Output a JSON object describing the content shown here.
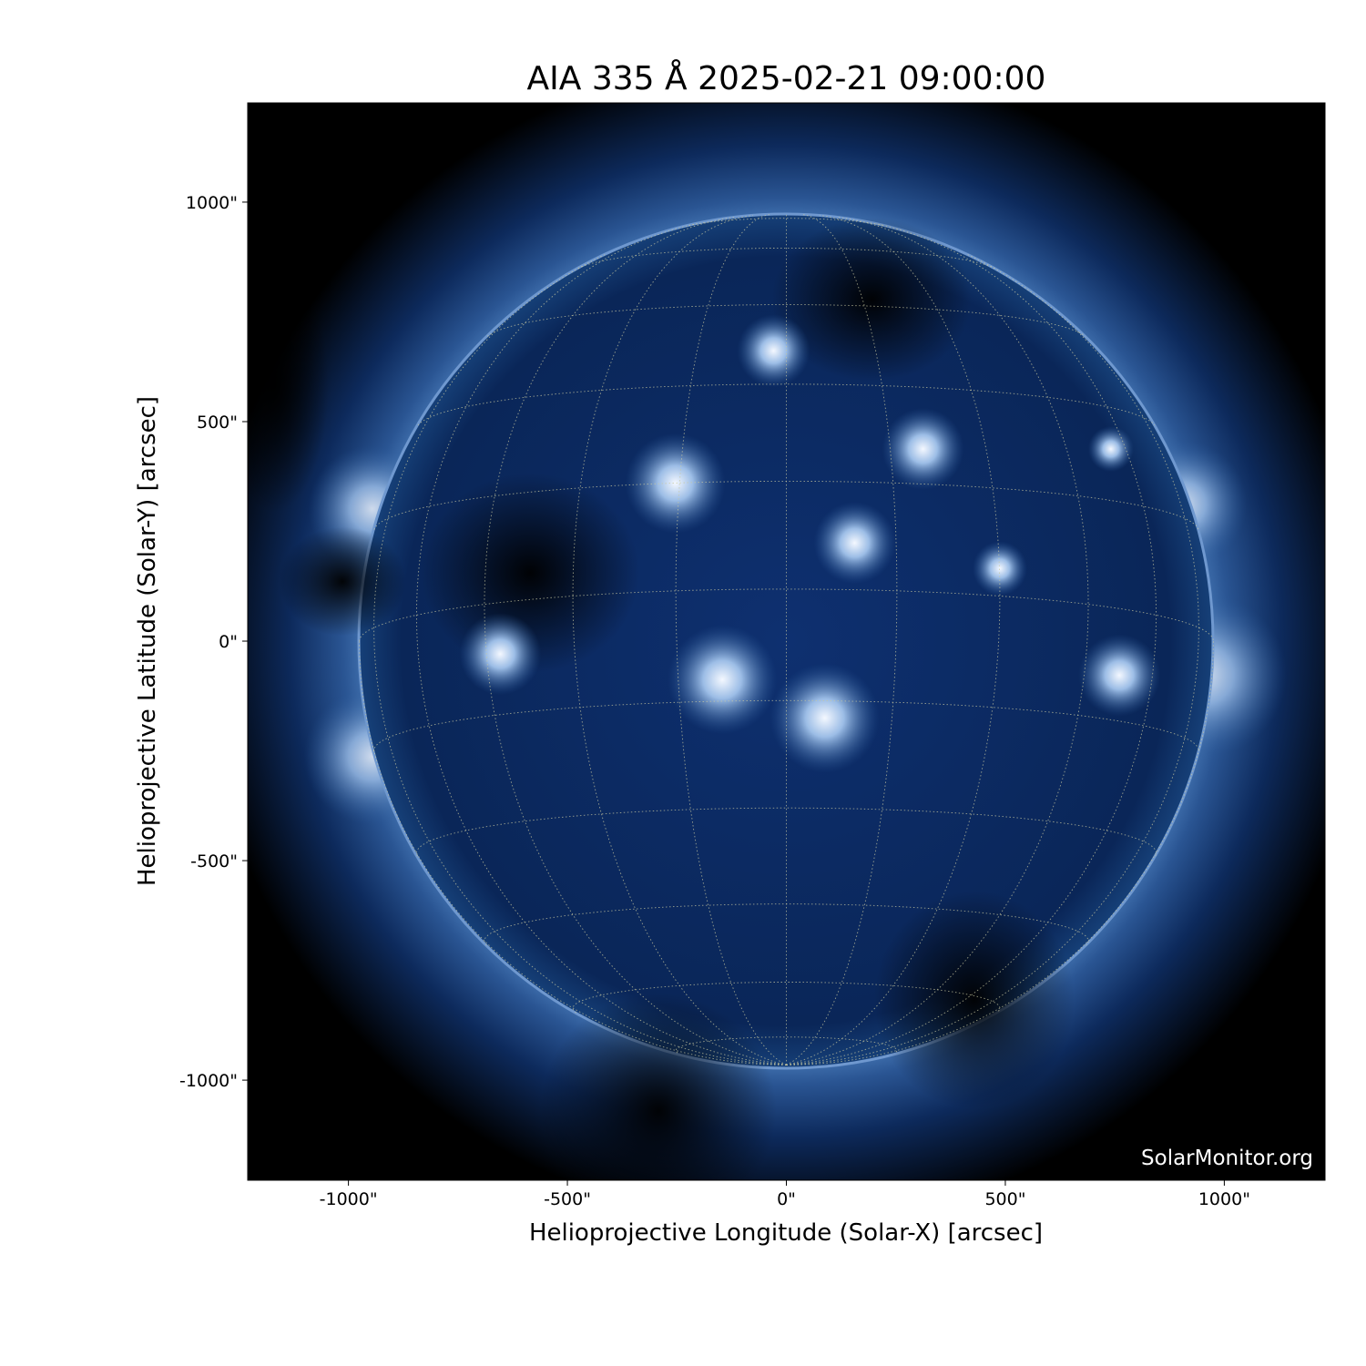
{
  "chart_data": {
    "type": "heatmap",
    "title": "AIA 335 Å 2025-02-21 09:00:00",
    "xlabel": "Helioprojective Longitude (Solar-X) [arcsec]",
    "ylabel": "Helioprojective Latitude (Solar-Y) [arcsec]",
    "xlim": [
      -1230,
      1230
    ],
    "ylim": [
      -1228,
      1226
    ],
    "xticks": [
      -1000,
      -500,
      0,
      500,
      1000
    ],
    "xtick_labels": [
      "-1000\"",
      "-500\"",
      "0\"",
      "500\"",
      "1000\""
    ],
    "yticks": [
      -1000,
      -500,
      0,
      500,
      1000
    ],
    "ytick_labels": [
      "-1000\"",
      "-500\"",
      "0\"",
      "500\"",
      "1000\""
    ],
    "solar_radius_arcsec": 975,
    "grid": "heliographic, 15° spacing, dotted",
    "colormap": "sdoaia335",
    "colors": {
      "background": "#000000",
      "disk": "#03183a",
      "corona": "#3d6fb0",
      "bright": "#e8f1ff",
      "grid": "#c8c8a0"
    },
    "annotation": "SolarMonitor.org"
  }
}
